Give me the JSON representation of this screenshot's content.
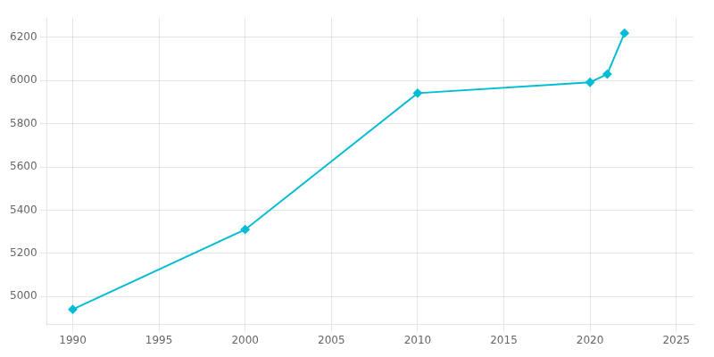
{
  "chart_data": {
    "type": "line",
    "x": [
      1990,
      2000,
      2010,
      2020,
      2021,
      2022
    ],
    "values": [
      4940,
      5310,
      5942,
      5992,
      6030,
      6220
    ],
    "color": "#00bcd4",
    "marker": "diamond",
    "xlim": [
      1988.5,
      2026
    ],
    "ylim": [
      4870,
      6290
    ],
    "xticks": [
      1990,
      1995,
      2000,
      2005,
      2010,
      2015,
      2020,
      2025
    ],
    "yticks": [
      5000,
      5200,
      5400,
      5600,
      5800,
      6000,
      6200
    ],
    "grid": true
  }
}
